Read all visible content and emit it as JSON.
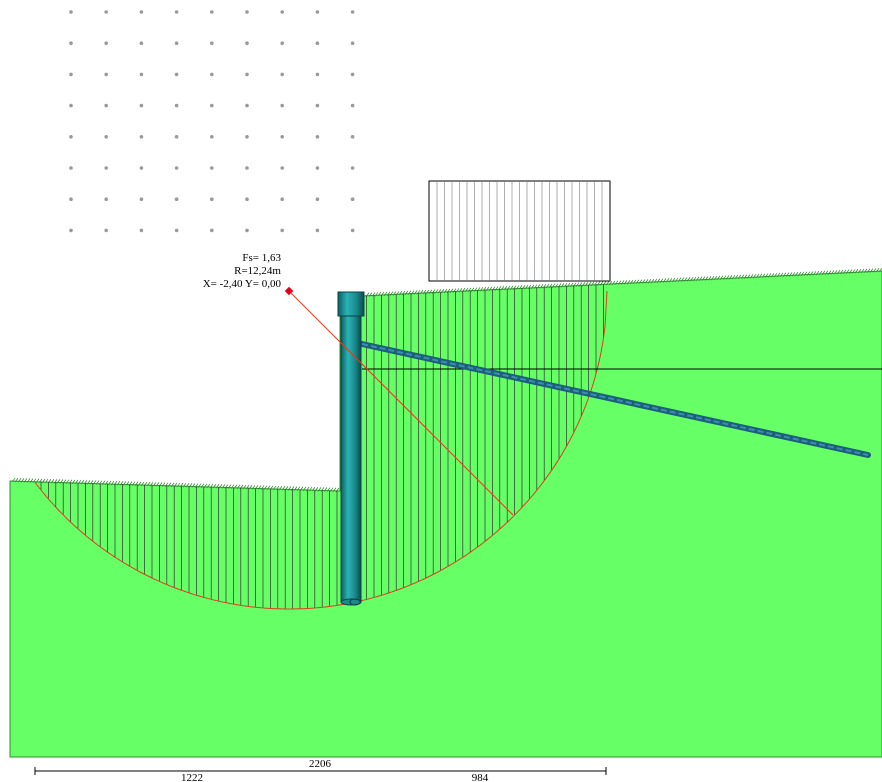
{
  "result": {
    "fs_text": "Fs= 1,63",
    "radius_text": "R=12,24m",
    "center_text": "X= -2,40 Y= 0,00"
  },
  "dimensions": {
    "total": "2206",
    "left": "1222",
    "right": "984"
  },
  "colors": {
    "soil": "#66ff66",
    "soil_edge": "#2f8f2f",
    "slip_circle": "#e03c1e",
    "pile": "#1d8c8e",
    "anchor": "#1b5f7a",
    "slice_lines": "#303030",
    "center_marker": "#e8001a",
    "grid_points": "#9a9a9a"
  }
}
